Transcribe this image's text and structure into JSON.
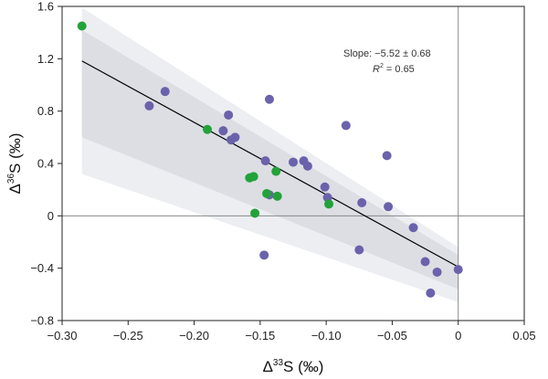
{
  "chart_data": {
    "type": "scatter",
    "xlim": [
      -0.3,
      0.05
    ],
    "ylim": [
      -0.8,
      1.6
    ],
    "x_ticks": [
      "−0.30",
      "−0.25",
      "−0.20",
      "−0.15",
      "−0.10",
      "−0.05",
      "0",
      "0.05"
    ],
    "y_ticks": [
      "−0.8",
      "−0.4",
      "0",
      "0.4",
      "0.8",
      "1.2",
      "1.6"
    ],
    "x_tick_values": [
      -0.3,
      -0.25,
      -0.2,
      -0.15,
      -0.1,
      -0.05,
      0,
      0.05
    ],
    "y_tick_values": [
      -0.8,
      -0.4,
      0,
      0.4,
      0.8,
      1.2,
      1.6
    ],
    "xlabel": {
      "prefix": "Δ",
      "sup": "33",
      "suffix": "S (‰)"
    },
    "ylabel": {
      "prefix": "Δ",
      "sup": "36",
      "suffix": "S (‰)"
    },
    "annotation": {
      "slope_text": "Slope: −5.52 ± 0.68",
      "r2_symbol": "R",
      "r2_sup": "2",
      "r2_value": " = 0.65"
    },
    "regression": {
      "slope": -5.52,
      "intercept": -0.39,
      "x_range": [
        -0.285,
        0
      ]
    },
    "confidence_bands": {
      "outer": {
        "top": [
          [
            -0.285,
            1.59
          ],
          [
            0,
            -0.24
          ]
        ],
        "bottom": [
          [
            -0.285,
            0.32
          ],
          [
            0,
            -0.66
          ]
        ]
      },
      "inner": {
        "top": [
          [
            -0.285,
            1.42
          ],
          [
            0,
            -0.3
          ]
        ],
        "bottom": [
          [
            -0.285,
            0.6
          ],
          [
            0,
            -0.56
          ]
        ]
      }
    },
    "reference_lines": {
      "x": 0,
      "y": 0
    },
    "colors": {
      "purple": "#6a62ab",
      "green": "#23a23a",
      "outer_band": "#eceef2",
      "inner_band": "#dcdee3",
      "regression": "#000000",
      "reference": "#888888"
    },
    "series": [
      {
        "color_key": "purple",
        "points": [
          [
            -0.234,
            0.84
          ],
          [
            -0.222,
            0.95
          ],
          [
            -0.143,
            0.89
          ],
          [
            -0.174,
            0.77
          ],
          [
            -0.178,
            0.65
          ],
          [
            -0.172,
            0.58
          ],
          [
            -0.169,
            0.6
          ],
          [
            -0.146,
            0.42
          ],
          [
            -0.125,
            0.41
          ],
          [
            -0.117,
            0.42
          ],
          [
            -0.114,
            0.38
          ],
          [
            -0.085,
            0.69
          ],
          [
            -0.054,
            0.46
          ],
          [
            -0.101,
            0.22
          ],
          [
            -0.099,
            0.14
          ],
          [
            -0.073,
            0.1
          ],
          [
            -0.053,
            0.07
          ],
          [
            -0.143,
            0.16
          ],
          [
            -0.147,
            -0.3
          ],
          [
            -0.075,
            -0.26
          ],
          [
            -0.034,
            -0.09
          ],
          [
            -0.025,
            -0.35
          ],
          [
            -0.016,
            -0.43
          ],
          [
            -0.021,
            -0.59
          ],
          [
            0.0,
            -0.41
          ]
        ]
      },
      {
        "color_key": "green",
        "points": [
          [
            -0.285,
            1.45
          ],
          [
            -0.19,
            0.66
          ],
          [
            -0.138,
            0.34
          ],
          [
            -0.158,
            0.29
          ],
          [
            -0.155,
            0.3
          ],
          [
            -0.145,
            0.17
          ],
          [
            -0.137,
            0.15
          ],
          [
            -0.098,
            0.09
          ],
          [
            -0.154,
            0.02
          ]
        ]
      }
    ]
  }
}
